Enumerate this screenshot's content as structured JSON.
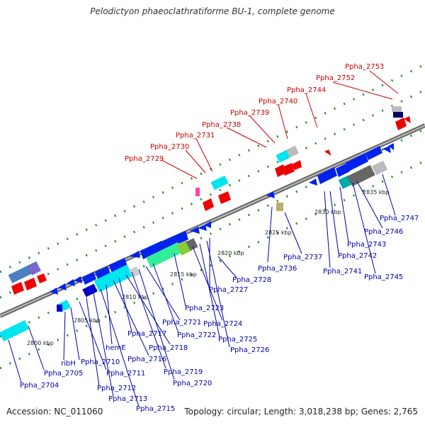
{
  "title": "Pelodictyon phaeoclathratiforme BU-1, complete genome",
  "accession": "Accession: NC_011060",
  "summary": "Topology: circular; Length: 3,018,238 bp; Genes: 2,765",
  "ticks": [
    "2800 kbp",
    "2805 kbp",
    "2810 kbp",
    "2815 kbp",
    "2820 kbp",
    "2825 kbp",
    "2830 kbp",
    "2835 kbp"
  ],
  "upper_labels": [
    "Ppha_2729",
    "Ppha_2730",
    "Ppha_2731",
    "Ppha_2738",
    "Ppha_2739",
    "Ppha_2740",
    "Ppha_2744",
    "Ppha_2752",
    "Ppha_2753"
  ],
  "lower_labels": [
    "Ppha_2704",
    "Ppha_2705",
    "ribH",
    "Ppha_2710",
    "Ppha_2711",
    "Ppha_2712",
    "Ppha_2713",
    "Ppha_2715",
    "hemE",
    "Ppha_2716",
    "Ppha_2717",
    "Ppha_2718",
    "Ppha_2719",
    "Ppha_2720",
    "Ppha_2721",
    "Ppha_2722",
    "Ppha_2723",
    "Ppha_2724",
    "Ppha_2725",
    "Ppha_2726",
    "Ppha_2727",
    "Ppha_2728",
    "Ppha_2736",
    "Ppha_2737",
    "Ppha_2741",
    "Ppha_2742",
    "Ppha_2743",
    "Ppha_2745",
    "Ppha_2746",
    "Ppha_2747"
  ],
  "colors": {
    "upper_label": "#cc0000",
    "lower_label": "#0000aa",
    "backbone": "#888888",
    "track_dots": "#228B22"
  }
}
